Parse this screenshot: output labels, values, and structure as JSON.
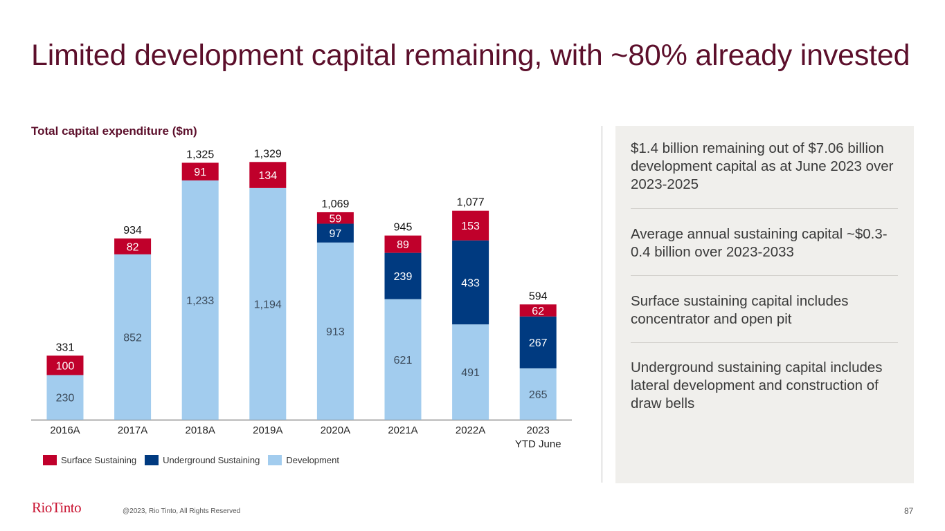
{
  "slide": {
    "title": "Limited development capital remaining, with ~80% already invested",
    "page_number": "87",
    "logo": "RioTinto",
    "copyright": "@2023, Rio Tinto, All Rights Reserved"
  },
  "colors": {
    "title": "#5c0f2b",
    "surface_sustaining": "#c0002b",
    "underground_sustaining": "#003a80",
    "development": "#a2ccee",
    "logo": "#c8102e"
  },
  "legend": [
    {
      "label": "Surface Sustaining",
      "color": "#c0002b"
    },
    {
      "label": "Underground Sustaining",
      "color": "#003a80"
    },
    {
      "label": "Development",
      "color": "#a2ccee"
    }
  ],
  "panel": {
    "items": [
      "$1.4 billion remaining out of $7.06 billion development capital as at June 2023 over 2023-2025",
      "Average annual sustaining capital ~$0.3-0.4 billion over 2023-2033",
      "Surface sustaining capital includes concentrator and open pit",
      "Underground sustaining capital includes lateral development and construction of draw bells"
    ]
  },
  "chart_data": {
    "type": "bar",
    "stacked": true,
    "title": "Total capital expenditure ($m)",
    "xlabel": "",
    "ylabel": "",
    "ylim": [
      0,
      1400
    ],
    "grid": false,
    "legend_position": "bottom-left",
    "categories": [
      "2016A",
      "2017A",
      "2018A",
      "2019A",
      "2020A",
      "2021A",
      "2022A",
      "2023\nYTD June"
    ],
    "series": [
      {
        "name": "Development",
        "color": "#a2ccee",
        "label_color": "#3b4a5a",
        "values": [
          230,
          852,
          1233,
          1194,
          913,
          621,
          491,
          265
        ],
        "labels": [
          "230",
          "852",
          "1,233",
          "1,194",
          "913",
          "621",
          "491",
          "265"
        ]
      },
      {
        "name": "Underground Sustaining",
        "color": "#003a80",
        "label_color": "#ffffff",
        "values": [
          0,
          0,
          0,
          0,
          97,
          239,
          433,
          267
        ],
        "labels": [
          "",
          "",
          "",
          "",
          "97",
          "239",
          "433",
          "267"
        ]
      },
      {
        "name": "Surface Sustaining",
        "color": "#c0002b",
        "label_color": "#ffffff",
        "values": [
          100,
          82,
          91,
          134,
          59,
          89,
          153,
          62
        ],
        "labels": [
          "100",
          "82",
          "91",
          "134",
          "59",
          "89",
          "153",
          "62"
        ]
      }
    ],
    "totals": [
      "331",
      "934",
      "1,325",
      "1,329",
      "1,069",
      "945",
      "1,077",
      "594"
    ]
  }
}
